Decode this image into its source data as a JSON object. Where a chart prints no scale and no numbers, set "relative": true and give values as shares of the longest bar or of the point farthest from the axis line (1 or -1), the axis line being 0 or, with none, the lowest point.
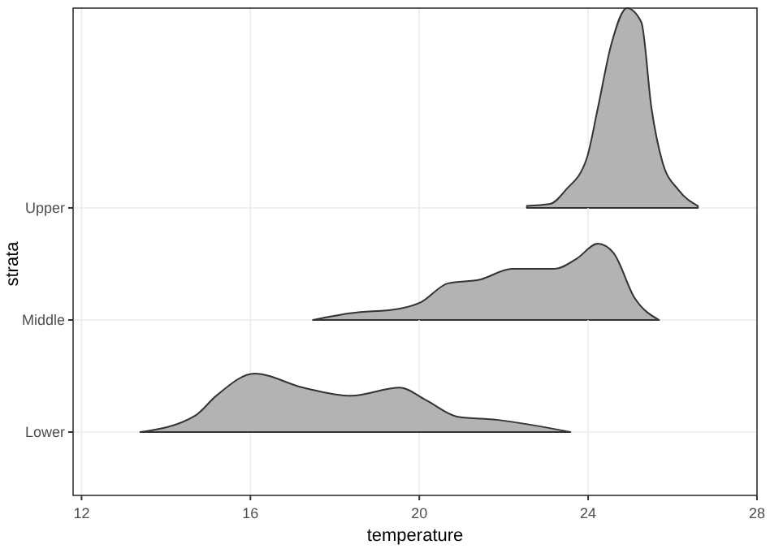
{
  "chart_data": [
    {
      "type": "area",
      "relative": true,
      "xlim": [
        11.8,
        28
      ],
      "xticks": [
        12,
        16,
        20,
        24,
        28
      ],
      "tick_labels": false,
      "grid": true,
      "series": [
        {
          "name": "Upper",
          "color": "#b3b3b3",
          "x": [
            22.55,
            23.1,
            23.47,
            23.97,
            24.23,
            24.55,
            24.92,
            25.26,
            25.5,
            25.76,
            26.14,
            26.6
          ],
          "values": [
            0.01,
            0.02,
            0.09,
            0.25,
            0.5,
            0.82,
            1,
            0.93,
            0.5,
            0.23,
            0.09,
            0.01
          ]
        }
      ]
    },
    {
      "type": "area",
      "relative": true,
      "ylabel": "strata",
      "xlim": [
        11.8,
        28
      ],
      "xticks": [
        12,
        16,
        20,
        24,
        28
      ],
      "tick_labels": false,
      "grid": true,
      "series": [
        {
          "name": "Middle",
          "color": "#b3b3b3",
          "x": [
            17.48,
            18.39,
            19.54,
            20.03,
            20.68,
            21.44,
            22.2,
            23.2,
            23.72,
            24.23,
            24.6,
            25.1,
            25.68
          ],
          "values": [
            0,
            0.09,
            0.15,
            0.23,
            0.48,
            0.53,
            0.67,
            0.67,
            0.8,
            1,
            0.88,
            0.29,
            0
          ]
        }
      ]
    },
    {
      "type": "area",
      "relative": true,
      "xlabel": "temperature",
      "xlim": [
        11.8,
        28
      ],
      "xticks": [
        12,
        16,
        20,
        24,
        28
      ],
      "tick_labels": "x",
      "grid": true,
      "series": [
        {
          "name": "Lower",
          "color": "#b3b3b3",
          "x": [
            13.39,
            14.69,
            15.19,
            16.1,
            17.25,
            18.39,
            19.54,
            20.15,
            20.92,
            21.83,
            23.58
          ],
          "values": [
            0,
            0.28,
            0.62,
            1,
            0.76,
            0.62,
            0.76,
            0.55,
            0.26,
            0.21,
            0
          ]
        }
      ]
    }
  ]
}
